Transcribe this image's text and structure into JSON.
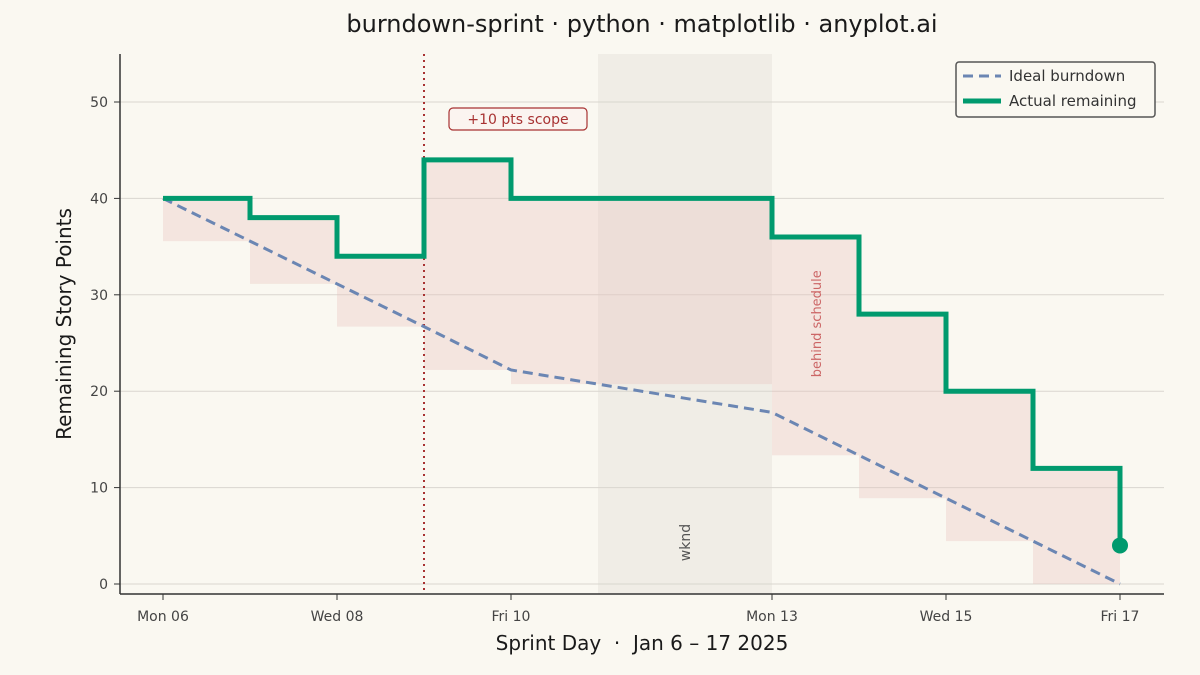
{
  "chart_data": {
    "type": "line",
    "title": "burndown-sprint · python · matplotlib · anyplot.ai",
    "xlabel": "Sprint Day  ·  Jan 6 – 17 2025",
    "ylabel": "Remaining Story Points",
    "ylim": [
      0,
      55
    ],
    "yticks": [
      0,
      10,
      20,
      30,
      40,
      50
    ],
    "xticks": [
      {
        "date": "2025-01-06",
        "label": "Mon 06"
      },
      {
        "date": "2025-01-08",
        "label": "Wed 08"
      },
      {
        "date": "2025-01-10",
        "label": "Fri 10"
      },
      {
        "date": "2025-01-13",
        "label": "Mon 13"
      },
      {
        "date": "2025-01-15",
        "label": "Wed 15"
      },
      {
        "date": "2025-01-17",
        "label": "Fri 17"
      }
    ],
    "grid": "horizontal",
    "legend_position": "top-right",
    "series": [
      {
        "name": "Ideal burndown",
        "style": "dashed",
        "color": "#6B86B3",
        "points": [
          {
            "x": "2025-01-06",
            "y": 40
          },
          {
            "x": "2025-01-09",
            "y": 26.7
          },
          {
            "x": "2025-01-10",
            "y": 22.2
          },
          {
            "x": "2025-01-13",
            "y": 17.8
          },
          {
            "x": "2025-01-17",
            "y": 0
          }
        ]
      },
      {
        "name": "Actual remaining",
        "style": "step",
        "color": "#009A6E",
        "points": [
          {
            "x": "2025-01-06",
            "y": 40
          },
          {
            "x": "2025-01-07",
            "y": 38
          },
          {
            "x": "2025-01-08",
            "y": 34
          },
          {
            "x": "2025-01-09",
            "y": 44
          },
          {
            "x": "2025-01-10",
            "y": 40
          },
          {
            "x": "2025-01-13",
            "y": 36
          },
          {
            "x": "2025-01-14",
            "y": 28
          },
          {
            "x": "2025-01-15",
            "y": 20
          },
          {
            "x": "2025-01-16",
            "y": 12
          },
          {
            "x": "2025-01-17",
            "y": 4
          }
        ]
      }
    ],
    "annotations": {
      "scope_change": {
        "x": "2025-01-09",
        "label": "+10 pts scope",
        "color": "#A83232"
      },
      "weekend": {
        "from": "2025-01-11",
        "to": "2025-01-13",
        "label": "wknd"
      },
      "gap": {
        "label": "behind schedule",
        "color": "#CC6666"
      }
    }
  }
}
